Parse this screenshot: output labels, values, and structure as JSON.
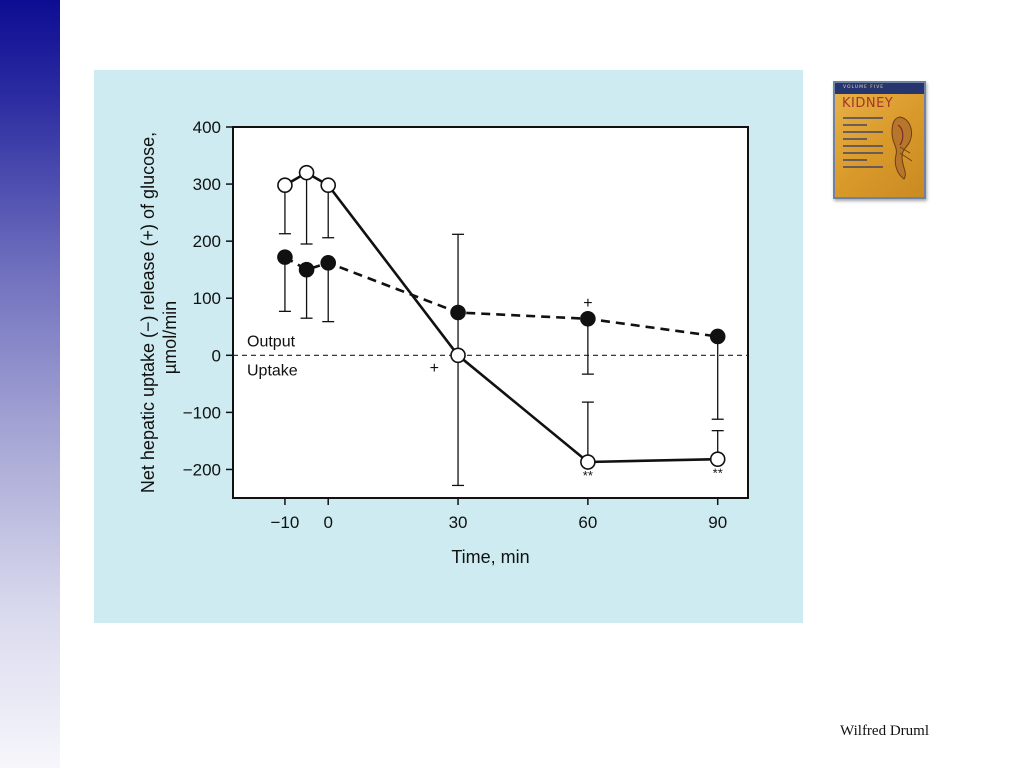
{
  "slide": {
    "footer_text": "Wilfred Druml",
    "accent_color": "#0d0d93",
    "panel_color": "#cdebf0"
  },
  "book_cover": {
    "icon": "book-cover-icon",
    "band_text": "VOLUME FIVE",
    "title": "KIDNEY"
  },
  "chart_data": {
    "type": "line",
    "ylabel_line1": "Net hepatic uptake (−) release (+) of glucose,",
    "ylabel_line2": "µmol/min",
    "xlabel": "Time, min",
    "ylim": [
      -250,
      400
    ],
    "xlim": [
      -22,
      97
    ],
    "y_ticks": [
      400,
      300,
      200,
      100,
      0,
      -100,
      -200
    ],
    "y_tick_labels": [
      "400",
      "300",
      "200",
      "100",
      "0",
      "−100",
      "−200"
    ],
    "x_ticks": [
      -10,
      0,
      30,
      60,
      90
    ],
    "x_tick_labels": [
      "−10",
      "0",
      "30",
      "60",
      "90"
    ],
    "grid": false,
    "zero_reference_line": "dashed",
    "region_labels": {
      "above_zero": "Output",
      "below_zero": "Uptake"
    },
    "series": [
      {
        "marker": "open-circle",
        "line": "solid",
        "points": [
          {
            "x": -10,
            "y": 298,
            "err_low": 85,
            "err_high": 0
          },
          {
            "x": -5,
            "y": 320,
            "err_low": 125,
            "err_high": 0
          },
          {
            "x": 0,
            "y": 298,
            "err_low": 92,
            "err_high": 0
          },
          {
            "x": 30,
            "y": 0,
            "err_low": 228,
            "err_high": 212
          },
          {
            "x": 60,
            "y": -187,
            "err_low": 0,
            "err_high": 105
          },
          {
            "x": 90,
            "y": -182,
            "err_low": 0,
            "err_high": 50
          }
        ]
      },
      {
        "marker": "filled-circle",
        "line": "dashed",
        "points": [
          {
            "x": -10,
            "y": 172,
            "err_low": 95,
            "err_high": 0
          },
          {
            "x": -5,
            "y": 150,
            "err_low": 85,
            "err_high": 0
          },
          {
            "x": 0,
            "y": 162,
            "err_low": 103,
            "err_high": 0
          },
          {
            "x": 30,
            "y": 75,
            "err_low": 0,
            "err_high": 0
          },
          {
            "x": 60,
            "y": 64,
            "err_low": 97,
            "err_high": 0
          },
          {
            "x": 90,
            "y": 33,
            "err_low": 145,
            "err_high": 0
          }
        ]
      }
    ],
    "annotations": [
      {
        "text": "+",
        "x": 60,
        "y": 92
      },
      {
        "text": "+",
        "x": 24.5,
        "y": -22
      },
      {
        "text": "**",
        "x": 60,
        "y": -210
      },
      {
        "text": "**",
        "x": 90,
        "y": -205
      }
    ]
  }
}
